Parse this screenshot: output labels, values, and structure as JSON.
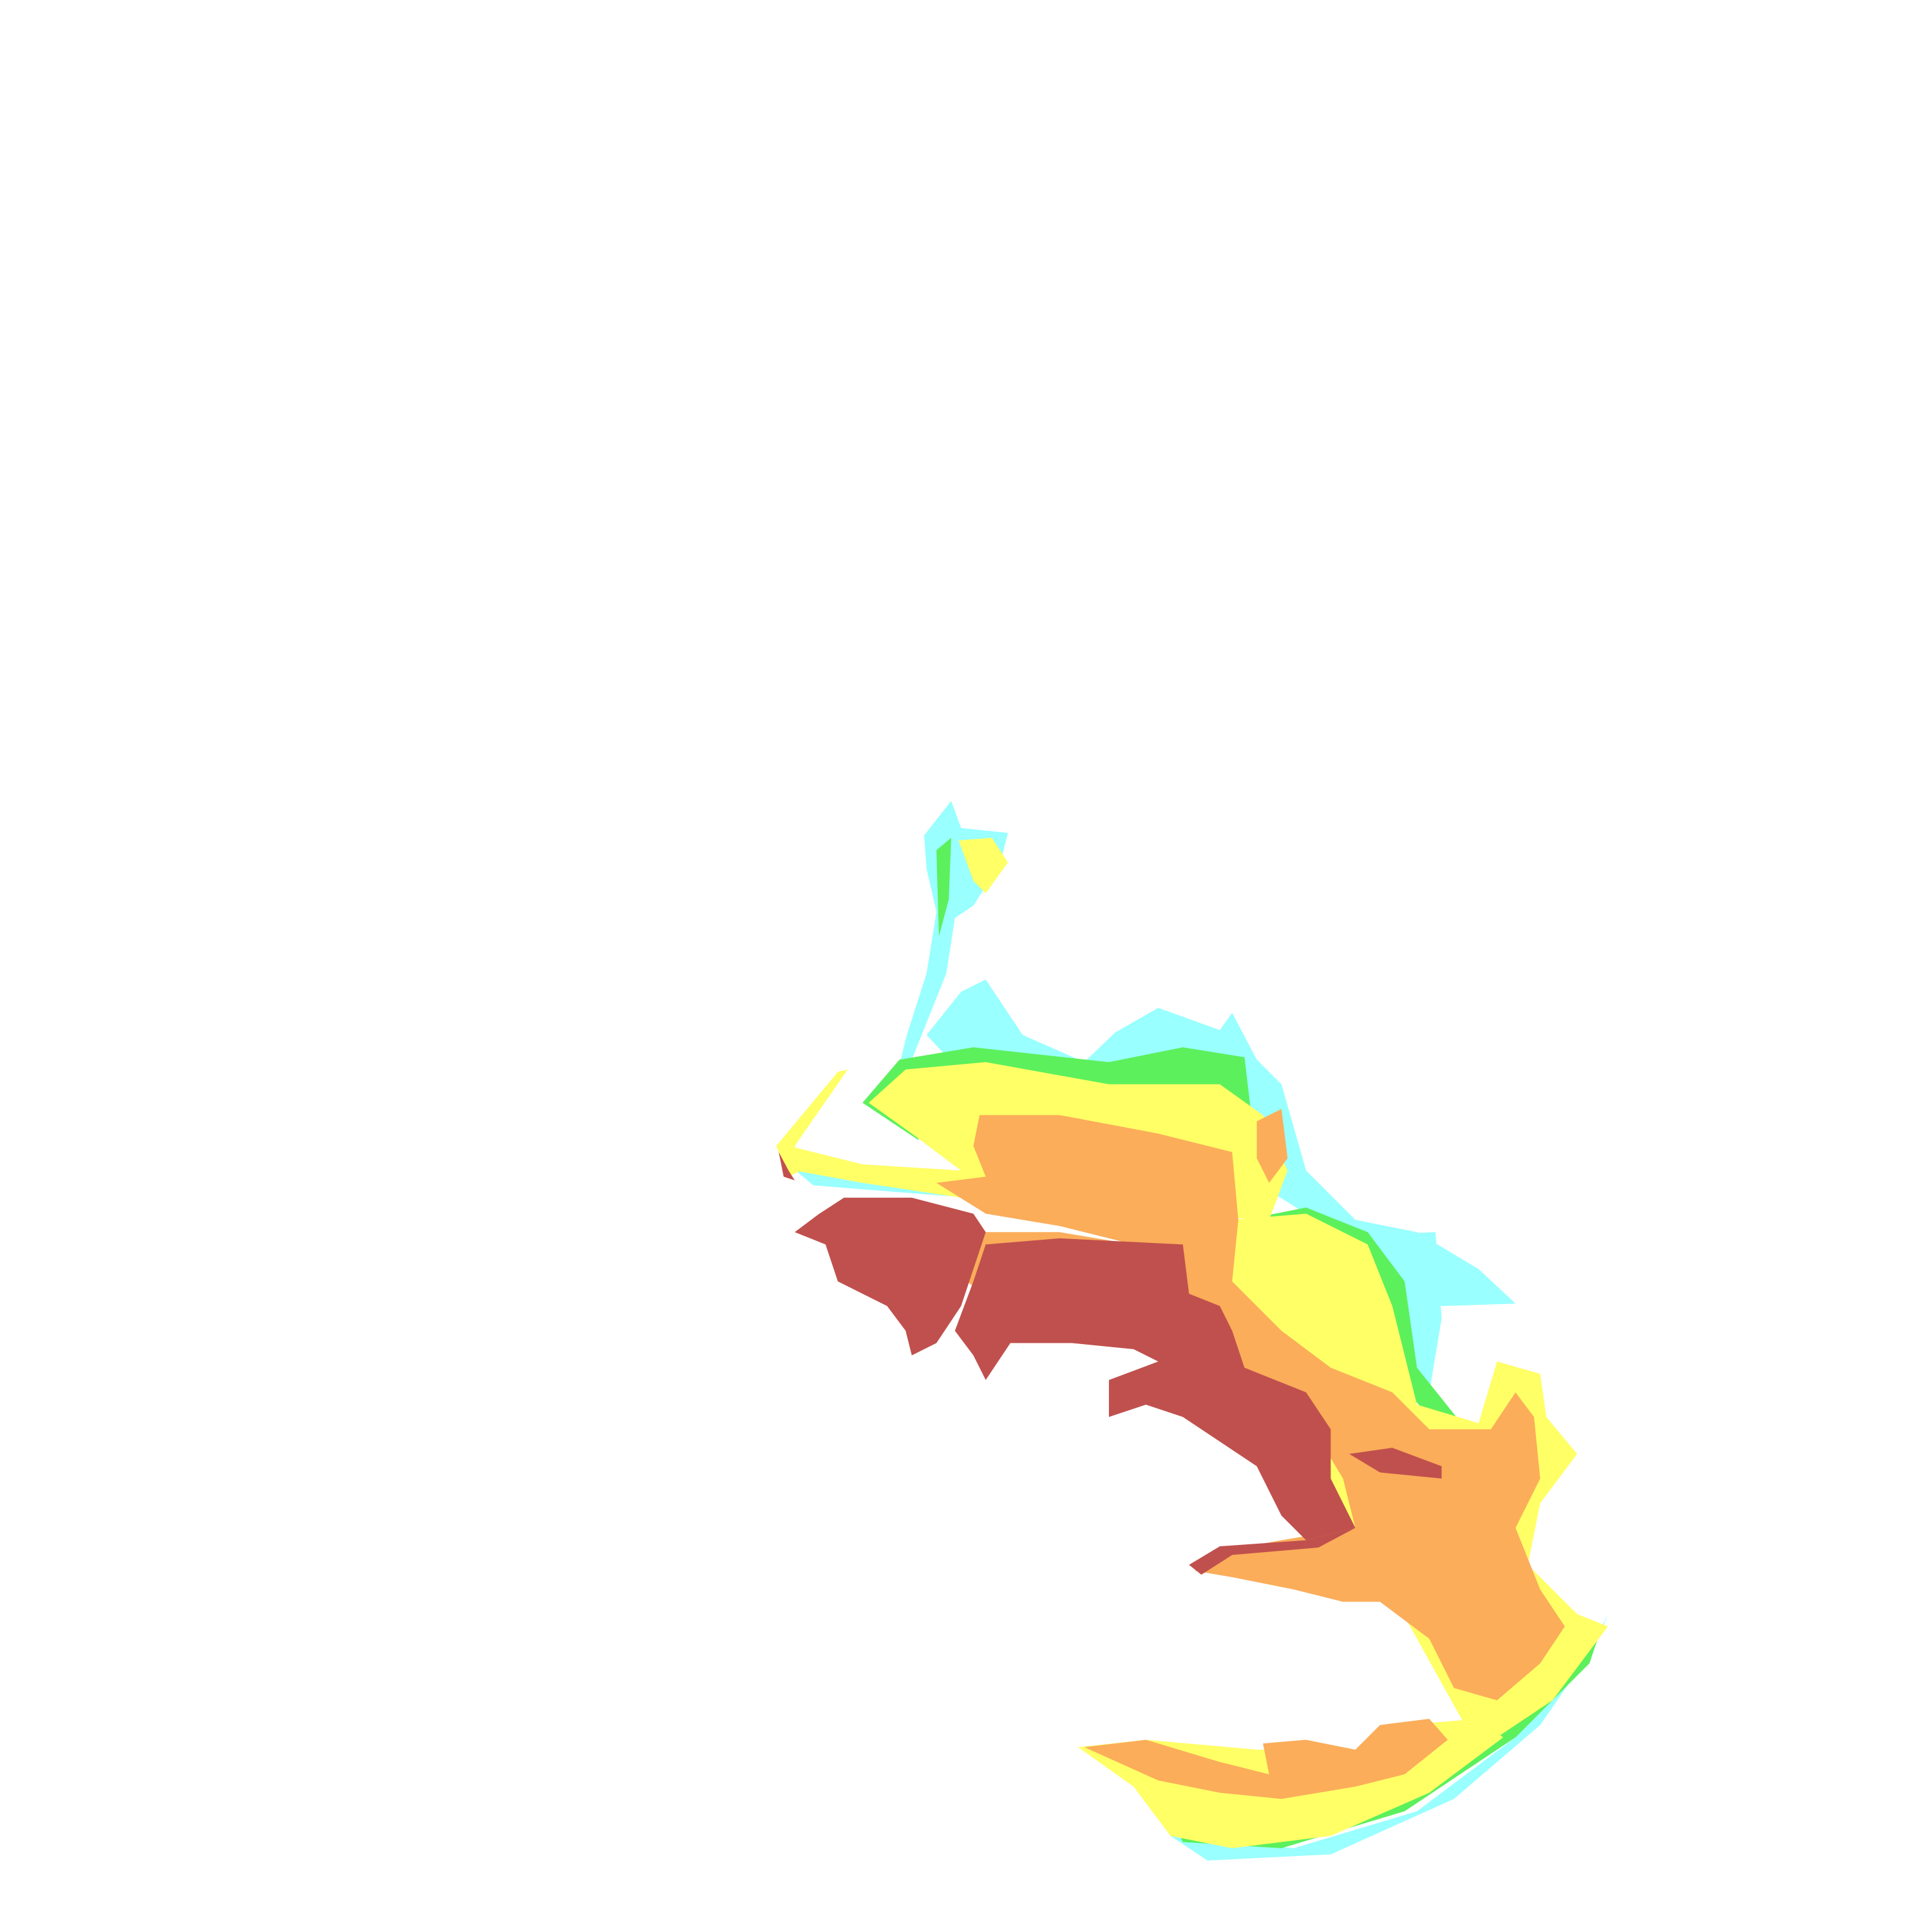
{
  "map": {
    "background": "#ffffff",
    "colors": {
      "class_1": "#99ffff",
      "class_2": "#5cf05c",
      "class_3": "#ffff66",
      "class_4": "#fbad5a",
      "class_5": "#c0504d"
    }
  }
}
